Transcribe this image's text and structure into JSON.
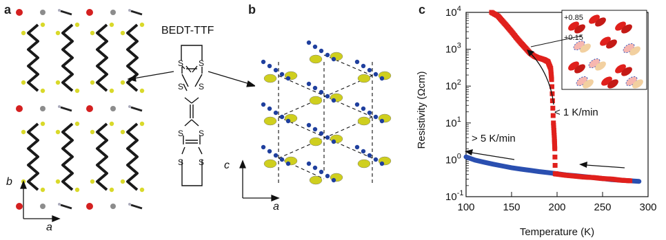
{
  "panels": {
    "a": {
      "label": "a",
      "axis_b": "b",
      "axis_a": "a"
    },
    "b": {
      "label": "b",
      "axis_c": "c",
      "axis_a": "a"
    },
    "c": {
      "label": "c"
    }
  },
  "molecule": {
    "title": "BEDT-TTF",
    "atoms": [
      "S",
      "S",
      "S",
      "S",
      "S",
      "S",
      "S",
      "S"
    ]
  },
  "colors": {
    "sulfur": "#d9d92a",
    "carbon": "#1a1a1a",
    "anion_red": "#d42020",
    "anion_grey": "#8c8c8c",
    "dimer_blue": "#1f3f9e",
    "dimer_yellow": "#cfcf1e",
    "red_curve": "#e0201c",
    "blue_curve": "#2a4fb0"
  },
  "chart_data": {
    "type": "line",
    "xlabel": "Temperature (K)",
    "ylabel": "Resistivity (Ωcm)",
    "xlim": [
      100,
      300
    ],
    "ylim": [
      0.1,
      10000
    ],
    "yscale": "log",
    "xticks": [
      "100",
      "150",
      "200",
      "250",
      "300"
    ],
    "yticks": [
      {
        "base": "10",
        "exp": "-1",
        "value": 0.1
      },
      {
        "base": "10",
        "exp": "0",
        "value": 1
      },
      {
        "base": "10",
        "exp": "1",
        "value": 10
      },
      {
        "base": "10",
        "exp": "2",
        "value": 100
      },
      {
        "base": "10",
        "exp": "3",
        "value": 1000
      },
      {
        "base": "10",
        "exp": "4",
        "value": 10000
      }
    ],
    "annotations": {
      "slow": "< 1 K/min",
      "fast": "> 5 K/min"
    },
    "inset_labels": [
      "+0.85",
      "+0.15"
    ],
    "series": [
      {
        "color": "red",
        "x": [
          128,
          135,
          140,
          145,
          150,
          155,
          160,
          165,
          170,
          175,
          178,
          182,
          186,
          190,
          193,
          194,
          195,
          196,
          197,
          197.5,
          198,
          200,
          210,
          220,
          230,
          240,
          250,
          260,
          270,
          280
        ],
        "y": [
          10000,
          8000,
          5800,
          4200,
          3000,
          2100,
          1500,
          1100,
          800,
          650,
          600,
          560,
          520,
          460,
          300,
          150,
          40,
          10,
          4,
          2,
          0.42,
          0.41,
          0.38,
          0.36,
          0.34,
          0.33,
          0.31,
          0.3,
          0.28,
          0.27
        ]
      },
      {
        "color": "blue",
        "x": [
          100,
          110,
          120,
          130,
          140,
          150,
          160,
          170,
          180,
          190,
          200,
          210,
          220,
          230,
          240,
          250,
          260,
          270,
          280,
          290
        ],
        "y": [
          1.2,
          0.98,
          0.86,
          0.76,
          0.68,
          0.61,
          0.56,
          0.52,
          0.48,
          0.45,
          0.42,
          0.39,
          0.37,
          0.35,
          0.33,
          0.31,
          0.29,
          0.28,
          0.27,
          0.26
        ]
      }
    ]
  }
}
